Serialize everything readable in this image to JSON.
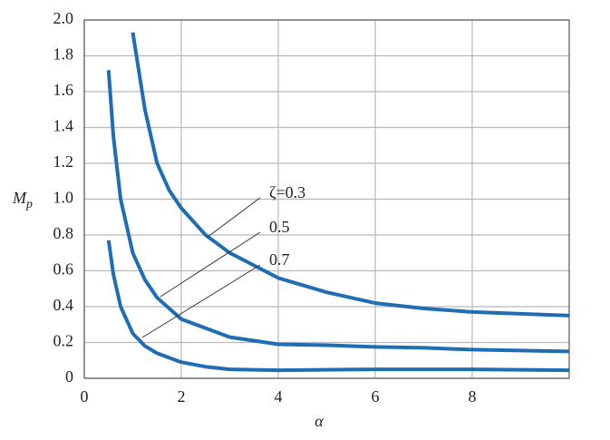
{
  "chart_data": {
    "type": "line",
    "xlabel": "α",
    "ylabel": {
      "main": "M",
      "sub": "p"
    },
    "xlim": [
      0,
      10
    ],
    "ylim": [
      0,
      2
    ],
    "xticks": [
      0,
      2,
      4,
      6,
      8
    ],
    "yticks": [
      0,
      0.2,
      0.4,
      0.6,
      0.8,
      {
        "value": 1,
        "label": "1.0"
      },
      1.2,
      1.4,
      1.6,
      1.8,
      {
        "value": 2,
        "label": "2.0"
      }
    ],
    "grid": true,
    "series": [
      {
        "name": "ζ=0.3",
        "color": "#1f6db3",
        "x": [
          1,
          1.25,
          1.5,
          1.75,
          2,
          2.5,
          3,
          4,
          5,
          6,
          7,
          8,
          9,
          10
        ],
        "values": [
          1.93,
          1.5,
          1.2,
          1.05,
          0.95,
          0.8,
          0.7,
          0.56,
          0.48,
          0.42,
          0.39,
          0.37,
          0.36,
          0.35
        ]
      },
      {
        "name": "0.5",
        "color": "#1f6db3",
        "x": [
          0.5,
          0.6,
          0.75,
          1,
          1.25,
          1.5,
          2,
          3,
          4,
          5,
          6,
          7,
          8,
          9,
          10
        ],
        "values": [
          1.72,
          1.35,
          1.0,
          0.7,
          0.55,
          0.45,
          0.33,
          0.23,
          0.19,
          0.185,
          0.175,
          0.17,
          0.16,
          0.155,
          0.15
        ]
      },
      {
        "name": "0.7",
        "color": "#1f6db3",
        "x": [
          0.5,
          0.6,
          0.75,
          1,
          1.25,
          1.5,
          2,
          2.5,
          3,
          4,
          6,
          8,
          10
        ],
        "values": [
          0.77,
          0.58,
          0.4,
          0.25,
          0.18,
          0.14,
          0.09,
          0.065,
          0.05,
          0.045,
          0.05,
          0.05,
          0.045
        ]
      }
    ]
  }
}
